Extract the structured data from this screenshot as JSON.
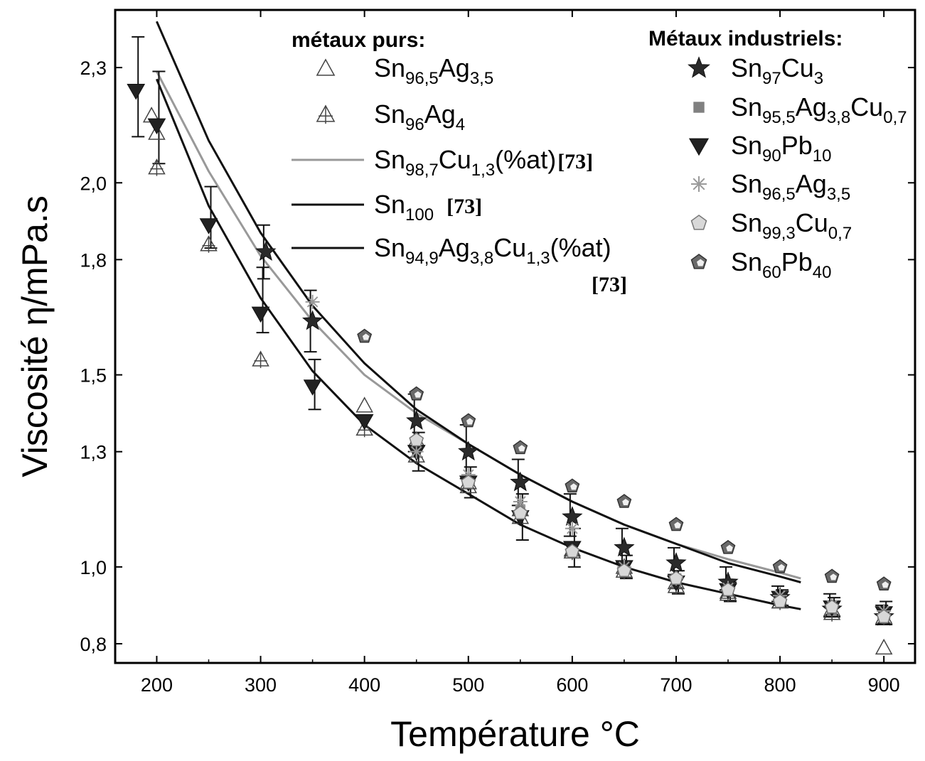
{
  "chart_data": {
    "type": "scatter",
    "xlabel": "Température °C",
    "ylabel": "Viscosité η/mPa.s",
    "xlim": [
      160,
      930
    ],
    "ylim": [
      0.75,
      2.45
    ],
    "x_ticks": [
      "200",
      "300",
      "400",
      "500",
      "600",
      "700",
      "800",
      "900"
    ],
    "y_ticks": [
      "0,8",
      "1,0",
      "1,3",
      "1,5",
      "1,8",
      "2,0",
      "2,3"
    ],
    "legend_left_title": "métaux purs:",
    "legend_right_title": "Métaux industriels:",
    "series": [
      {
        "name": "Sn96,5Ag3,5",
        "group": "pure",
        "marker": "triangle-open",
        "color": "#555555",
        "points": [
          [
            195,
            2.175
          ],
          [
            200,
            2.13
          ],
          [
            400,
            1.42
          ],
          [
            450,
            1.33
          ],
          [
            500,
            1.21
          ],
          [
            550,
            1.13
          ],
          [
            600,
            1.045
          ],
          [
            650,
            1.0
          ],
          [
            700,
            0.96
          ],
          [
            750,
            0.935
          ],
          [
            800,
            0.91
          ],
          [
            850,
            0.89
          ],
          [
            900,
            0.79
          ]
        ]
      },
      {
        "name": "Sn96Ag4",
        "group": "pure",
        "marker": "triangle-cross",
        "color": "#555555",
        "points": [
          [
            200,
            2.04
          ],
          [
            250,
            1.84
          ],
          [
            300,
            1.54
          ],
          [
            400,
            1.36
          ],
          [
            450,
            1.29
          ],
          [
            500,
            1.22
          ],
          [
            550,
            1.15
          ],
          [
            600,
            1.04
          ],
          [
            650,
            0.99
          ],
          [
            700,
            0.95
          ],
          [
            750,
            0.93
          ],
          [
            800,
            0.91
          ],
          [
            850,
            0.88
          ],
          [
            900,
            0.87
          ]
        ]
      },
      {
        "name": "Sn97Cu3",
        "group": "industrial",
        "marker": "star",
        "color": "#333333",
        "points": [
          [
            305,
            1.82
          ],
          [
            350,
            1.64
          ],
          [
            450,
            1.38
          ],
          [
            500,
            1.3
          ],
          [
            550,
            1.22
          ],
          [
            600,
            1.13
          ],
          [
            650,
            1.05
          ],
          [
            700,
            1.01
          ],
          [
            750,
            0.96
          ],
          [
            800,
            0.92
          ],
          [
            850,
            0.89
          ],
          [
            900,
            0.87
          ]
        ],
        "errors": [
          [
            305,
            1.75,
            1.89
          ],
          [
            350,
            1.56,
            1.72
          ],
          [
            450,
            1.3,
            1.45
          ],
          [
            500,
            1.23,
            1.37
          ],
          [
            550,
            1.16,
            1.28
          ],
          [
            600,
            1.08,
            1.19
          ],
          [
            650,
            1.01,
            1.1
          ],
          [
            700,
            0.98,
            1.05
          ],
          [
            750,
            0.94,
            1.0
          ],
          [
            800,
            0.91,
            0.95
          ],
          [
            850,
            0.87,
            0.93
          ],
          [
            900,
            0.85,
            0.9
          ]
        ]
      },
      {
        "name": "Sn95,5Ag3,8Cu0,7",
        "group": "industrial",
        "marker": "square",
        "color": "#888888",
        "points": [
          [
            500,
            1.22
          ],
          [
            550,
            1.15
          ],
          [
            600,
            1.05
          ],
          [
            650,
            0.995
          ],
          [
            700,
            0.96
          ],
          [
            750,
            0.935
          ],
          [
            800,
            0.915
          ],
          [
            850,
            0.885
          ],
          [
            900,
            0.875
          ]
        ]
      },
      {
        "name": "Sn90Pb10",
        "group": "industrial",
        "marker": "triangle-down",
        "color": "#222222",
        "points": [
          [
            180,
            2.24
          ],
          [
            200,
            2.15
          ],
          [
            250,
            1.89
          ],
          [
            300,
            1.66
          ],
          [
            350,
            1.47
          ],
          [
            400,
            1.38
          ],
          [
            450,
            1.3
          ],
          [
            500,
            1.22
          ],
          [
            550,
            1.13
          ],
          [
            600,
            1.05
          ],
          [
            650,
            1.0
          ],
          [
            700,
            0.96
          ],
          [
            750,
            0.94
          ],
          [
            800,
            0.92
          ],
          [
            850,
            0.895
          ],
          [
            900,
            0.88
          ]
        ],
        "errors": [
          [
            180,
            2.12,
            2.38
          ],
          [
            200,
            2.05,
            2.29
          ],
          [
            250,
            1.83,
            1.99
          ],
          [
            300,
            1.61,
            1.78
          ],
          [
            350,
            1.41,
            1.54
          ],
          [
            450,
            1.25,
            1.35
          ],
          [
            500,
            1.18,
            1.26
          ],
          [
            550,
            1.07,
            1.19
          ],
          [
            600,
            1.0,
            1.1
          ],
          [
            650,
            0.97,
            1.03
          ],
          [
            700,
            0.93,
            0.99
          ],
          [
            750,
            0.91,
            0.96
          ],
          [
            800,
            0.9,
            0.94
          ],
          [
            850,
            0.87,
            0.92
          ],
          [
            900,
            0.85,
            0.91
          ]
        ]
      },
      {
        "name": "Sn96,5Ag3,5",
        "group": "industrial",
        "marker": "asterisk",
        "color": "#aaaaaa",
        "points": [
          [
            350,
            1.69
          ],
          [
            450,
            1.3
          ],
          [
            500,
            1.24
          ],
          [
            550,
            1.17
          ],
          [
            600,
            1.1
          ],
          [
            650,
            1.0
          ],
          [
            700,
            0.97
          ],
          [
            750,
            0.945
          ],
          [
            800,
            0.925
          ],
          [
            850,
            0.9
          ],
          [
            900,
            0.885
          ]
        ]
      },
      {
        "name": "Sn99,3Cu0,7",
        "group": "industrial",
        "marker": "pentagon-light",
        "color": "#aaaaaa",
        "points": [
          [
            450,
            1.33
          ],
          [
            500,
            1.22
          ],
          [
            550,
            1.14
          ],
          [
            600,
            1.04
          ],
          [
            650,
            0.99
          ],
          [
            700,
            0.97
          ],
          [
            750,
            0.94
          ],
          [
            800,
            0.91
          ],
          [
            850,
            0.895
          ],
          [
            900,
            0.87
          ]
        ]
      },
      {
        "name": "Sn60Pb40",
        "group": "industrial",
        "marker": "pentagon-dark",
        "color": "#666666",
        "points": [
          [
            400,
            1.6
          ],
          [
            450,
            1.45
          ],
          [
            500,
            1.38
          ],
          [
            550,
            1.31
          ],
          [
            600,
            1.21
          ],
          [
            650,
            1.17
          ],
          [
            700,
            1.11
          ],
          [
            750,
            1.05
          ],
          [
            800,
            1.0
          ],
          [
            850,
            0.975
          ],
          [
            900,
            0.955
          ]
        ]
      }
    ],
    "curves": [
      {
        "name": "Sn98,7Cu1,3(%at)",
        "ref": "[73]",
        "color": "#999999",
        "x_range": [
          200,
          820
        ],
        "points": [
          [
            200,
            2.29
          ],
          [
            250,
            2.03
          ],
          [
            300,
            1.81
          ],
          [
            350,
            1.64
          ],
          [
            400,
            1.5
          ],
          [
            450,
            1.4
          ],
          [
            500,
            1.32
          ],
          [
            550,
            1.24
          ],
          [
            600,
            1.17
          ],
          [
            650,
            1.11
          ],
          [
            700,
            1.06
          ],
          [
            750,
            1.02
          ],
          [
            800,
            0.985
          ],
          [
            820,
            0.97
          ]
        ]
      },
      {
        "name": "Sn100",
        "ref": "[73]",
        "color": "#111111",
        "x_range": [
          200,
          820
        ],
        "points": [
          [
            200,
            2.42
          ],
          [
            250,
            2.11
          ],
          [
            300,
            1.87
          ],
          [
            350,
            1.68
          ],
          [
            400,
            1.53
          ],
          [
            450,
            1.41
          ],
          [
            500,
            1.32
          ],
          [
            550,
            1.24
          ],
          [
            600,
            1.17
          ],
          [
            650,
            1.11
          ],
          [
            700,
            1.06
          ],
          [
            750,
            1.01
          ],
          [
            800,
            0.975
          ],
          [
            820,
            0.96
          ]
        ]
      },
      {
        "name": "Sn94,9Ag3,8Cu1,3(%at)",
        "ref": "[73]",
        "color": "#111111",
        "x_range": [
          200,
          820
        ],
        "points": [
          [
            200,
            2.27
          ],
          [
            250,
            1.94
          ],
          [
            300,
            1.7
          ],
          [
            350,
            1.51
          ],
          [
            400,
            1.37
          ],
          [
            450,
            1.27
          ],
          [
            500,
            1.19
          ],
          [
            550,
            1.11
          ],
          [
            600,
            1.05
          ],
          [
            650,
            1.0
          ],
          [
            700,
            0.96
          ],
          [
            750,
            0.93
          ],
          [
            800,
            0.9
          ],
          [
            820,
            0.89
          ]
        ]
      }
    ],
    "legend_left": [
      {
        "base": "Sn",
        "parts": [
          [
            "96,5",
            "sub"
          ],
          [
            "Ag",
            "n"
          ],
          [
            "3,5",
            "sub"
          ]
        ],
        "ref": ""
      },
      {
        "base": "Sn",
        "parts": [
          [
            "96",
            "sub"
          ],
          [
            "Ag",
            "n"
          ],
          [
            "4",
            "sub"
          ]
        ],
        "ref": ""
      },
      {
        "base": "Sn",
        "parts": [
          [
            "98,7",
            "sub"
          ],
          [
            "Cu",
            "n"
          ],
          [
            "1,3",
            "sub"
          ],
          [
            "(%at)",
            "n"
          ]
        ],
        "ref": "[73]"
      },
      {
        "base": "Sn",
        "parts": [
          [
            "100",
            "sub"
          ]
        ],
        "ref": "[73]"
      },
      {
        "base": "Sn",
        "parts": [
          [
            "94,9",
            "sub"
          ],
          [
            "Ag",
            "n"
          ],
          [
            "3,8",
            "sub"
          ],
          [
            "Cu",
            "n"
          ],
          [
            "1,3",
            "sub"
          ],
          [
            "(%at)",
            "n"
          ]
        ],
        "ref": "[73]"
      }
    ],
    "legend_right": [
      {
        "base": "Sn",
        "parts": [
          [
            "97",
            "sub"
          ],
          [
            "Cu",
            "n"
          ],
          [
            "3",
            "sub"
          ]
        ]
      },
      {
        "base": "Sn",
        "parts": [
          [
            "95,5",
            "sub"
          ],
          [
            "Ag",
            "n"
          ],
          [
            "3,8",
            "sub"
          ],
          [
            "Cu",
            "n"
          ],
          [
            "0,7",
            "sub"
          ]
        ]
      },
      {
        "base": "Sn",
        "parts": [
          [
            "90",
            "sub"
          ],
          [
            "Pb",
            "n"
          ],
          [
            "10",
            "sub"
          ]
        ]
      },
      {
        "base": "Sn",
        "parts": [
          [
            "96,5",
            "sub"
          ],
          [
            "Ag",
            "n"
          ],
          [
            "3,5",
            "sub"
          ]
        ]
      },
      {
        "base": "Sn",
        "parts": [
          [
            "99,3",
            "sub"
          ],
          [
            "Cu",
            "n"
          ],
          [
            "0,7",
            "sub"
          ]
        ]
      },
      {
        "base": "Sn",
        "parts": [
          [
            "60",
            "sub"
          ],
          [
            "Pb",
            "n"
          ],
          [
            "40",
            "sub"
          ]
        ]
      }
    ]
  }
}
